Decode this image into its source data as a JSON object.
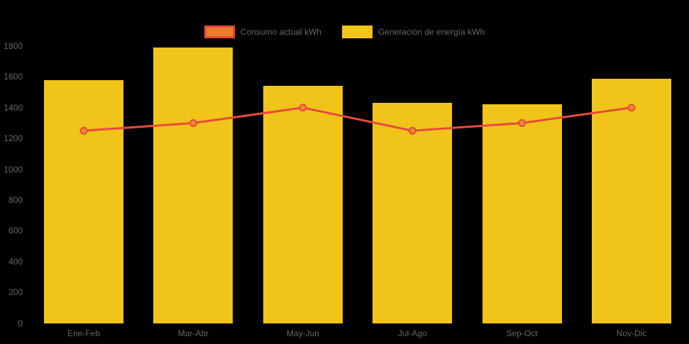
{
  "colors": {
    "background": "#000000",
    "bar": "#F0C419",
    "line": "#E74C3C",
    "point_fill": "#EE8A2E",
    "legend_consumo_fill": "#EF7D2E",
    "legend_consumo_border": "#E74C3C",
    "label_text": "#666666"
  },
  "chart_data": {
    "type": "bar",
    "subtype": "bar-with-line-overlay",
    "title": "",
    "xlabel": "",
    "ylabel": "",
    "categories": [
      "Ene-Feb",
      "Mar-Abr",
      "May-Jun",
      "Jul-Ago",
      "Sep-Oct",
      "Nov-Dic"
    ],
    "series": [
      {
        "name": "Consumo actual kWh",
        "type": "line",
        "values": [
          1250,
          1300,
          1400,
          1250,
          1300,
          1400
        ],
        "color": "#E74C3C",
        "point_fill": "#EE8A2E"
      },
      {
        "name": "Generación de energía kWh",
        "type": "bar",
        "values": [
          1580,
          1790,
          1540,
          1430,
          1420,
          1590
        ],
        "color": "#F0C419"
      }
    ],
    "ylim": [
      0,
      1800
    ],
    "yticks": [
      0,
      200,
      400,
      600,
      800,
      1000,
      1200,
      1400,
      1600,
      1800
    ],
    "grid": false,
    "legend_position": "top"
  }
}
